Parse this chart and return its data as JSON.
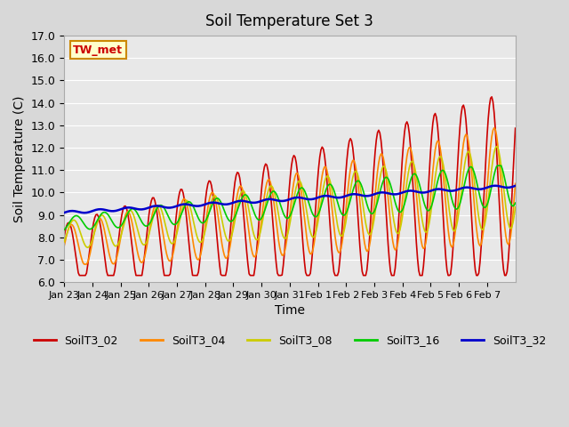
{
  "title": "Soil Temperature Set 3",
  "xlabel": "Time",
  "ylabel": "Soil Temperature (C)",
  "ylim": [
    6.0,
    17.0
  ],
  "yticks": [
    6.0,
    7.0,
    8.0,
    9.0,
    10.0,
    11.0,
    12.0,
    13.0,
    14.0,
    15.0,
    16.0,
    17.0
  ],
  "fig_bg_color": "#d8d8d8",
  "plot_bg_color": "#e8e8e8",
  "grid_color": "#ffffff",
  "series_colors": {
    "SoilT3_02": "#cc0000",
    "SoilT3_04": "#ff8800",
    "SoilT3_08": "#cccc00",
    "SoilT3_16": "#00cc00",
    "SoilT3_32": "#0000cc"
  },
  "xtick_labels": [
    "Jan 23",
    "Jan 24",
    "Jan 25",
    "Jan 26",
    "Jan 27",
    "Jan 28",
    "Jan 29",
    "Jan 30",
    "Jan 31",
    "Feb 1",
    "Feb 2",
    "Feb 3",
    "Feb 4",
    "Feb 5",
    "Feb 6",
    "Feb 7"
  ],
  "annotation_text": "TW_met",
  "annotation_color": "#cc0000",
  "annotation_bg": "#ffffcc",
  "annotation_border": "#cc8800",
  "n_days": 16
}
